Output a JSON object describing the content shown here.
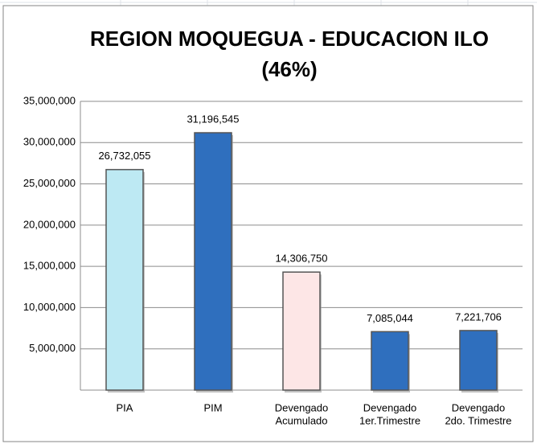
{
  "chart_data": {
    "type": "bar",
    "title": [
      "REGION MOQUEGUA - EDUCACION ILO",
      "(46%)"
    ],
    "categories": [
      [
        "PIA"
      ],
      [
        "PIM"
      ],
      [
        "Devengado",
        "Acumulado"
      ],
      [
        "Devengado",
        "1er.Trimestre"
      ],
      [
        "Devengado",
        "2do. Trimestre"
      ]
    ],
    "values": [
      26732055,
      31196545,
      14306750,
      7085044,
      7221706
    ],
    "value_labels": [
      "26,732,055",
      "31,196,545",
      "14,306,750",
      "7,085,044",
      "7,221,706"
    ],
    "colors": [
      "#bde9f3",
      "#2f6fbe",
      "#fde6e6",
      "#2f6fbe",
      "#2f6fbe"
    ],
    "ylim": [
      0,
      35000000
    ],
    "yticks": [
      {
        "value": 5000000,
        "label": "5,000,000"
      },
      {
        "value": 10000000,
        "label": "10,000,000"
      },
      {
        "value": 15000000,
        "label": "15,000,000"
      },
      {
        "value": 20000000,
        "label": "20,000,000"
      },
      {
        "value": 25000000,
        "label": "25,000,000"
      },
      {
        "value": 30000000,
        "label": "30,000,000"
      },
      {
        "value": 35000000,
        "label": "35,000,000"
      }
    ],
    "grid": true
  }
}
